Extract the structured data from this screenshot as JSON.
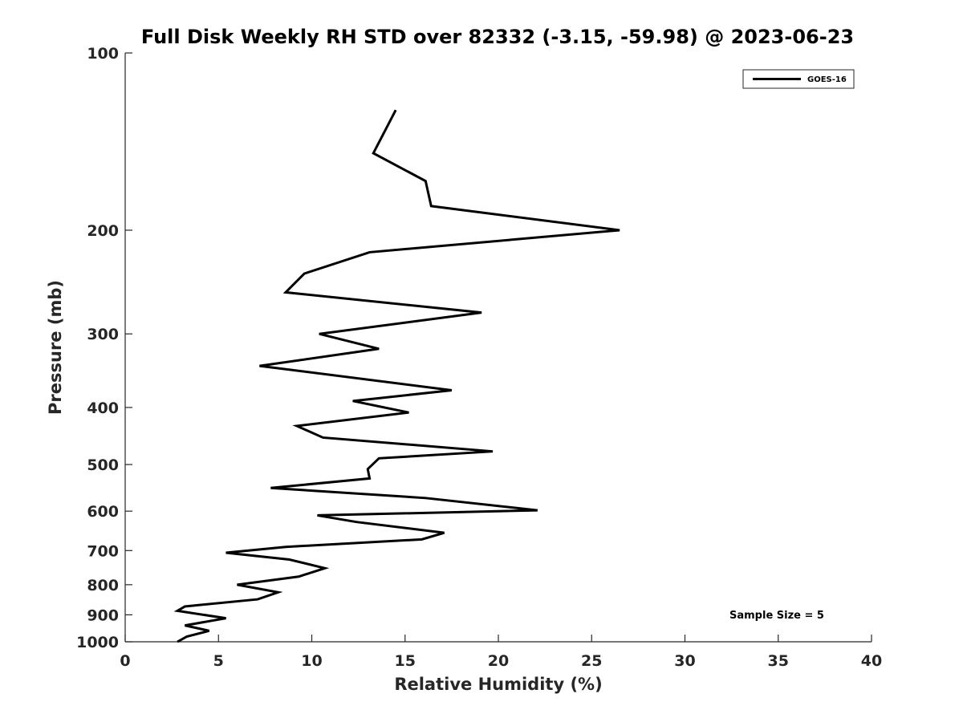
{
  "chart_data": {
    "type": "line",
    "title": "Full Disk Weekly RH STD over 82332 (-3.15, -59.98) @ 2023-06-23",
    "xlabel": "Relative Humidity (%)",
    "ylabel": "Pressure (mb)",
    "xlim": [
      0,
      40
    ],
    "ylim": [
      100,
      1000
    ],
    "yscale": "log",
    "yreversed": true,
    "xticks": [
      0,
      5,
      10,
      15,
      20,
      25,
      30,
      35,
      40
    ],
    "yticks": [
      100,
      200,
      300,
      400,
      500,
      600,
      700,
      800,
      900,
      1000
    ],
    "grid": false,
    "legend": {
      "position": "top-right",
      "entries": [
        "GOES-16"
      ]
    },
    "annotation": "Sample Size = 5",
    "series": [
      {
        "name": "GOES-16",
        "color": "#000000",
        "x": [
          14.5,
          13.3,
          16.1,
          16.4,
          26.5,
          13.1,
          9.6,
          8.6,
          19.1,
          10.4,
          13.6,
          7.2,
          17.5,
          12.2,
          15.2,
          9.2,
          10.6,
          19.7,
          13.6,
          13.0,
          13.1,
          7.8,
          16.1,
          22.1,
          10.3,
          12.4,
          17.1,
          15.9,
          8.6,
          5.4,
          8.8,
          10.7,
          9.3,
          6.0,
          8.2,
          7.1,
          3.2,
          2.8,
          5.4,
          3.2,
          4.5,
          3.3,
          2.8
        ],
        "y": [
          125,
          148,
          165,
          182,
          200,
          218,
          237,
          255,
          276,
          300,
          318,
          340,
          374,
          390,
          408,
          430,
          450,
          475,
          488,
          509,
          528,
          548,
          570,
          598,
          610,
          626,
          653,
          670,
          690,
          706,
          725,
          750,
          775,
          800,
          824,
          847,
          871,
          886,
          912,
          938,
          958,
          980,
          1000
        ]
      }
    ]
  }
}
